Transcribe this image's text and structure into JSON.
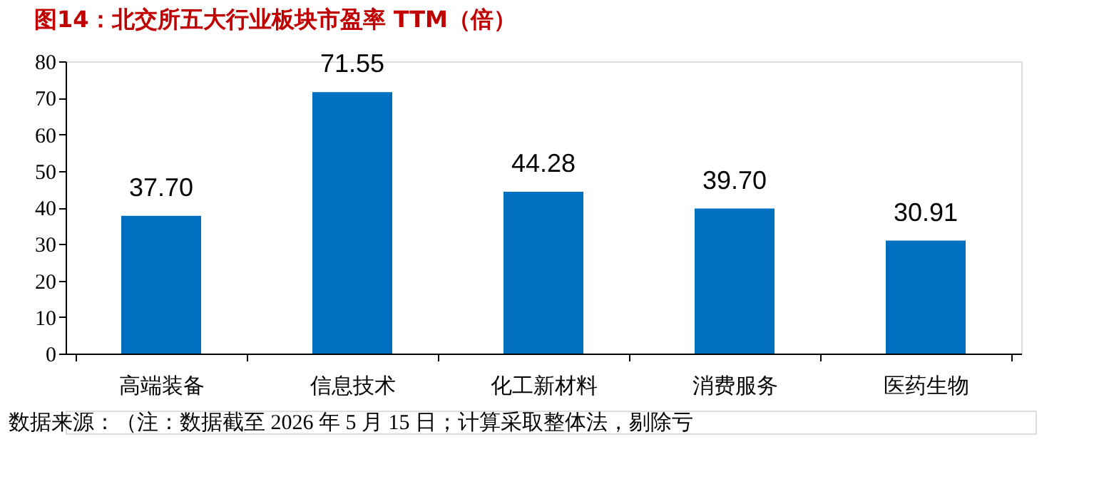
{
  "chart_data": {
    "type": "bar",
    "title": "图14：北交所五大行业板块市盈率 TTM（倍）",
    "categories": [
      "高端装备",
      "信息技术",
      "化工新材料",
      "消费服务",
      "医药生物"
    ],
    "values": [
      37.7,
      71.55,
      44.28,
      39.7,
      30.91
    ],
    "value_labels": [
      "37.70",
      "71.55",
      "44.28",
      "39.70",
      "30.91"
    ],
    "color": "#0070c0",
    "ylim": [
      0,
      80
    ],
    "yticks": [
      0,
      10,
      20,
      30,
      40,
      50,
      60,
      70,
      80
    ],
    "grid": false,
    "annotations": [
      "数据来源：（注：数据截至 2026 年 5 月 15 日；计算采取整体法，剔除亏"
    ]
  }
}
